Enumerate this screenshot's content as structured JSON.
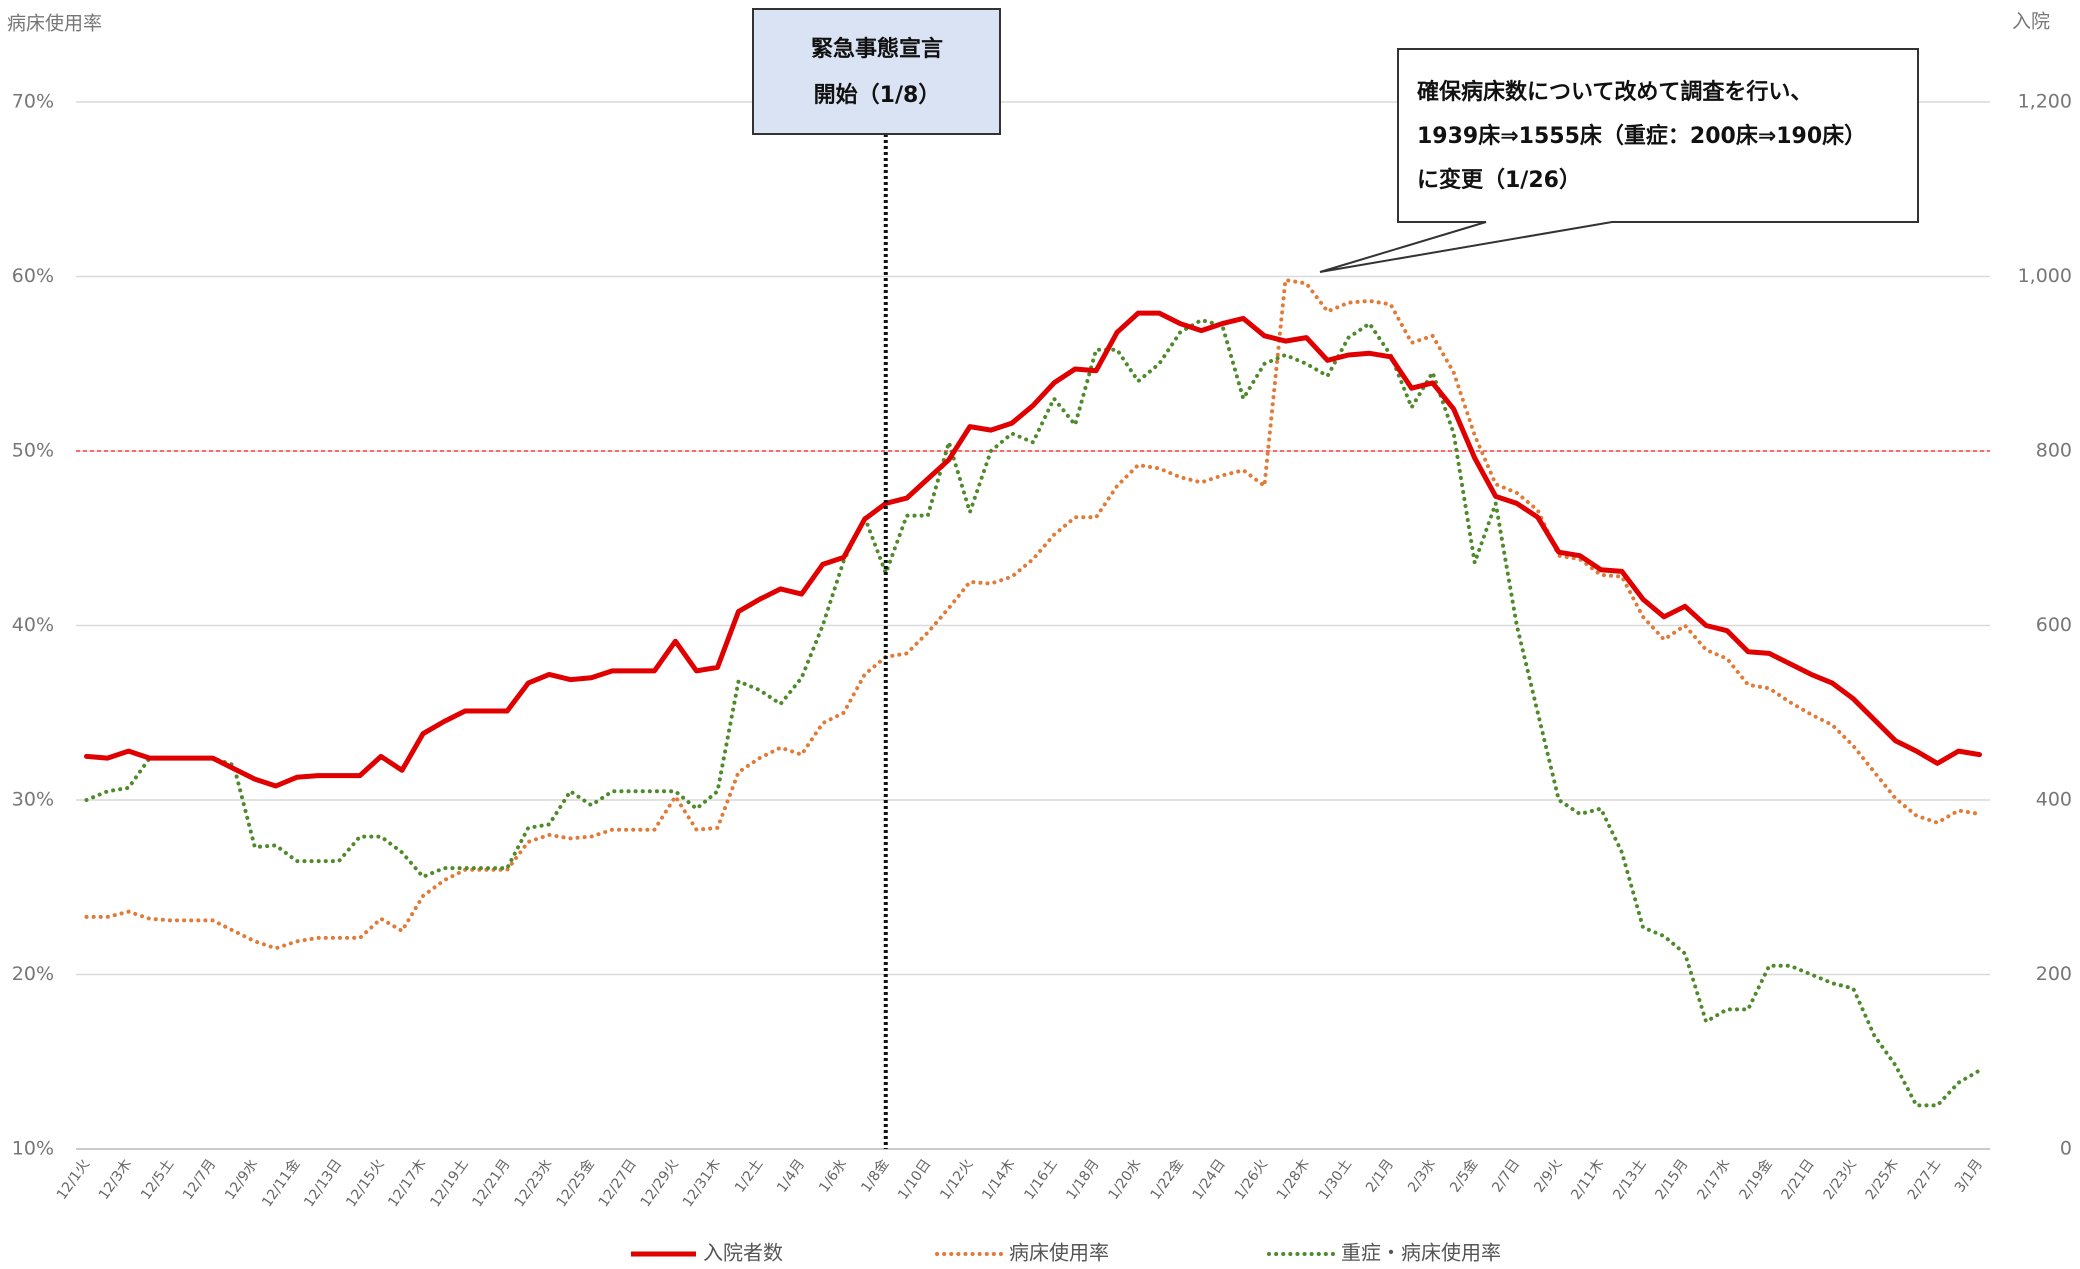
{
  "chart_data": {
    "type": "line",
    "y_label": "病床使用率",
    "y2_label": "入院",
    "categories": [
      "12/1火",
      null,
      "12/3木",
      null,
      "12/5土",
      null,
      "12/7月",
      null,
      "12/9水",
      null,
      "12/11金",
      null,
      "12/13日",
      null,
      "12/15火",
      null,
      "12/17木",
      null,
      "12/19土",
      null,
      "12/21月",
      null,
      "12/23水",
      null,
      "12/25金",
      null,
      "12/27日",
      null,
      "12/29火",
      null,
      "12/31木",
      null,
      "1/2土",
      null,
      "1/4月",
      null,
      "1/6水",
      null,
      "1/8金",
      null,
      "1/10日",
      null,
      "1/12火",
      null,
      "1/14木",
      null,
      "1/16土",
      null,
      "1/18月",
      null,
      "1/20水",
      null,
      "1/22金",
      null,
      "1/24日",
      null,
      "1/26火",
      null,
      "1/28木",
      null,
      "1/30土",
      null,
      "2/1月",
      null,
      "2/3水",
      null,
      "2/5金",
      null,
      "2/7日",
      null,
      "2/9火",
      null,
      "2/11木",
      null,
      "2/13土",
      null,
      "2/15月",
      null,
      "2/17水",
      null,
      "2/19金",
      null,
      "2/21日",
      null,
      "2/23火",
      null,
      "2/25木",
      null,
      "2/27土",
      null,
      "3/1月"
    ],
    "series": [
      {
        "name": "入院者数",
        "color": "#e00000",
        "line_style": "solid",
        "axis": "y2",
        "values": [
          450,
          448,
          456,
          448,
          448,
          448,
          448,
          436,
          424,
          416,
          426,
          428,
          428,
          428,
          450,
          434,
          476,
          490,
          502,
          502,
          502,
          534,
          544,
          538,
          540,
          548,
          548,
          548,
          582,
          548,
          552,
          616,
          630,
          642,
          636,
          670,
          678,
          722,
          740,
          746,
          768,
          790,
          828,
          824,
          832,
          852,
          878,
          894,
          892,
          936,
          958,
          958,
          946,
          938,
          946,
          952,
          932,
          926,
          930,
          904,
          910,
          912,
          908,
          872,
          878,
          848,
          792,
          748,
          740,
          724,
          684,
          680,
          664,
          662,
          630,
          610,
          622,
          600,
          594,
          570,
          568,
          556,
          544,
          534,
          516,
          492,
          468,
          456,
          442,
          456,
          452
        ]
      },
      {
        "name": "病床使用率",
        "color": "#e07b39",
        "line_style": "dotted",
        "values": [
          23.3,
          23.3,
          23.6,
          23.2,
          23.1,
          23.1,
          23.1,
          22.5,
          21.9,
          21.5,
          21.9,
          22.1,
          22.1,
          22.1,
          23.2,
          22.5,
          24.5,
          25.4,
          26.0,
          26.0,
          26.0,
          27.6,
          28.0,
          27.8,
          27.9,
          28.3,
          28.3,
          28.3,
          30.2,
          28.3,
          28.4,
          31.6,
          32.4,
          33.0,
          32.6,
          34.4,
          35.0,
          37.2,
          38.2,
          38.4,
          39.6,
          41.0,
          42.5,
          42.4,
          42.8,
          43.8,
          45.2,
          46.2,
          46.2,
          48.0,
          49.2,
          49.0,
          48.5,
          48.2,
          48.6,
          48.9,
          48.0,
          59.8,
          59.6,
          58.0,
          58.5,
          58.6,
          58.4,
          56.2,
          56.6,
          54.5,
          50.9,
          48.1,
          47.6,
          46.6,
          44.0,
          43.8,
          42.9,
          42.8,
          40.5,
          39.2,
          40.0,
          38.6,
          38.1,
          36.6,
          36.4,
          35.6,
          34.9,
          34.3,
          33.1,
          31.6,
          30.1,
          29.1,
          28.7,
          29.4,
          29.2
        ]
      },
      {
        "name": "重症・病床使用率",
        "color": "#4f8a2c",
        "line_style": "dotted",
        "values": [
          30.0,
          30.5,
          30.7,
          32.4,
          32.4,
          32.4,
          32.4,
          32.0,
          27.3,
          27.4,
          26.5,
          26.5,
          26.5,
          27.9,
          27.9,
          27.0,
          25.6,
          26.1,
          26.1,
          26.1,
          26.1,
          28.4,
          28.6,
          30.5,
          29.7,
          30.5,
          30.5,
          30.5,
          30.5,
          29.5,
          30.5,
          36.8,
          36.3,
          35.5,
          37.0,
          40.0,
          43.7,
          46.2,
          43.0,
          46.3,
          46.3,
          50.5,
          46.5,
          50.0,
          51.0,
          50.5,
          53.0,
          51.5,
          55.8,
          55.8,
          54.0,
          55.0,
          56.8,
          57.5,
          57.2,
          53.0,
          55.0,
          55.5,
          55.0,
          54.3,
          56.5,
          57.3,
          55.5,
          52.5,
          54.5,
          51.0,
          43.6,
          47.0,
          40.0,
          35.0,
          30.0,
          29.2,
          29.5,
          27.0,
          22.7,
          22.2,
          21.2,
          17.3,
          18.0,
          18.0,
          20.5,
          20.5,
          20.0,
          19.5,
          19.2,
          16.5,
          14.8,
          12.5,
          12.5,
          13.8,
          14.5
        ]
      }
    ],
    "ylim": [
      10,
      70
    ],
    "yticks": [
      {
        "value": 10,
        "label": "10%"
      },
      {
        "value": 20,
        "label": "20%"
      },
      {
        "value": 30,
        "label": "30%"
      },
      {
        "value": 40,
        "label": "40%"
      },
      {
        "value": 50,
        "label": "50%"
      },
      {
        "value": 60,
        "label": "60%"
      },
      {
        "value": 70,
        "label": "70%"
      }
    ],
    "y2lim": [
      0,
      1200
    ],
    "y2ticks": [
      0,
      200,
      400,
      600,
      800,
      {
        "value": 1000,
        "label": "1,000"
      },
      {
        "value": 1200,
        "label": "1,200"
      }
    ],
    "grid": true,
    "hline": {
      "value": 50,
      "color": "#ff4040"
    },
    "event": {
      "category": "1/8金",
      "lines": [
        "緊急事態宣言",
        "開始（1/8）"
      ]
    },
    "callout": {
      "lines": [
        "確保病床数について改めて調査を行い、",
        "1939床⇒1555床（重症：200床⇒190床）",
        "に変更（1/26）"
      ]
    },
    "legend": "bottom"
  }
}
